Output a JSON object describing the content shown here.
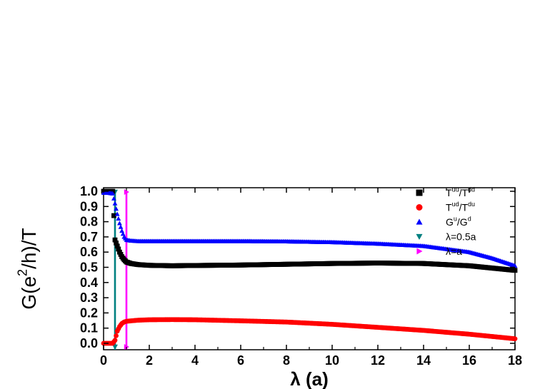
{
  "chart_data": {
    "type": "scatter",
    "xlabel": "λ (a)",
    "ylabel_parts": [
      "G(e",
      "2",
      "/h)/T"
    ],
    "xlim": [
      0,
      18
    ],
    "ylim": [
      0,
      1.0
    ],
    "xticks": [
      "0",
      "2",
      "4",
      "6",
      "8",
      "10",
      "12",
      "14",
      "16",
      "18"
    ],
    "yticks": [
      "0.0",
      "0.1",
      "0.2",
      "0.3",
      "0.4",
      "0.5",
      "0.6",
      "0.7",
      "0.8",
      "0.9",
      "1.0"
    ],
    "legend_position": "top-right",
    "series": [
      {
        "name": "Tuu/Tdd",
        "label_parts": [
          [
            "T",
            ""
          ],
          [
            "uu",
            "sup"
          ],
          [
            "/T",
            ""
          ],
          [
            "dd",
            "sup"
          ]
        ],
        "color": "#000000",
        "marker": "square",
        "points": [
          [
            0.0,
            1.0
          ],
          [
            0.2,
            1.0
          ],
          [
            0.4,
            1.0
          ],
          [
            0.5,
            0.68
          ],
          [
            0.6,
            0.64
          ],
          [
            0.7,
            0.6
          ],
          [
            0.8,
            0.57
          ],
          [
            0.9,
            0.55
          ],
          [
            1.0,
            0.535
          ],
          [
            1.2,
            0.525
          ],
          [
            1.5,
            0.518
          ],
          [
            2.0,
            0.513
          ],
          [
            3.0,
            0.51
          ],
          [
            4.0,
            0.512
          ],
          [
            6.0,
            0.515
          ],
          [
            8.0,
            0.52
          ],
          [
            10.0,
            0.525
          ],
          [
            12.0,
            0.528
          ],
          [
            14.0,
            0.525
          ],
          [
            16.0,
            0.51
          ],
          [
            17.0,
            0.495
          ],
          [
            18.0,
            0.48
          ]
        ]
      },
      {
        "name": "Tud/Tdu",
        "label_parts": [
          [
            "T",
            ""
          ],
          [
            "ud",
            "sup"
          ],
          [
            "/T",
            ""
          ],
          [
            "du",
            "sup"
          ]
        ],
        "color": "#ff0000",
        "marker": "circle",
        "points": [
          [
            0.0,
            0.0
          ],
          [
            0.2,
            0.0
          ],
          [
            0.4,
            0.0
          ],
          [
            0.5,
            0.02
          ],
          [
            0.6,
            0.08
          ],
          [
            0.7,
            0.11
          ],
          [
            0.8,
            0.13
          ],
          [
            0.9,
            0.14
          ],
          [
            1.0,
            0.145
          ],
          [
            1.5,
            0.152
          ],
          [
            2.0,
            0.155
          ],
          [
            3.0,
            0.156
          ],
          [
            4.0,
            0.155
          ],
          [
            6.0,
            0.148
          ],
          [
            8.0,
            0.14
          ],
          [
            10.0,
            0.125
          ],
          [
            12.0,
            0.105
          ],
          [
            14.0,
            0.085
          ],
          [
            16.0,
            0.06
          ],
          [
            18.0,
            0.03
          ]
        ]
      },
      {
        "name": "Gu/Gd",
        "label_parts": [
          [
            "G",
            ""
          ],
          [
            "u",
            "sup"
          ],
          [
            "/G",
            ""
          ],
          [
            "d",
            "sup"
          ]
        ],
        "color": "#0000ff",
        "marker": "triangle-up",
        "points": [
          [
            0.0,
            0.99
          ],
          [
            0.2,
            0.99
          ],
          [
            0.4,
            0.985
          ],
          [
            0.5,
            0.92
          ],
          [
            0.6,
            0.85
          ],
          [
            0.7,
            0.79
          ],
          [
            0.8,
            0.74
          ],
          [
            0.9,
            0.7
          ],
          [
            1.0,
            0.68
          ],
          [
            1.2,
            0.675
          ],
          [
            1.5,
            0.672
          ],
          [
            2.0,
            0.672
          ],
          [
            4.0,
            0.672
          ],
          [
            6.0,
            0.672
          ],
          [
            8.0,
            0.67
          ],
          [
            10.0,
            0.665
          ],
          [
            12.0,
            0.655
          ],
          [
            14.0,
            0.64
          ],
          [
            16.0,
            0.6
          ],
          [
            17.0,
            0.56
          ],
          [
            18.0,
            0.51
          ]
        ]
      },
      {
        "name": "λ=0.5a",
        "label_parts": [
          [
            "λ=0.5a",
            ""
          ]
        ],
        "color": "#008080",
        "marker": "triangle-down",
        "vertical_at": 0.5
      },
      {
        "name": "λ=a",
        "label_parts": [
          [
            "λ=a",
            ""
          ]
        ],
        "color": "#ff00ff",
        "marker": "triangle-right",
        "vertical_at": 1.0
      }
    ]
  }
}
